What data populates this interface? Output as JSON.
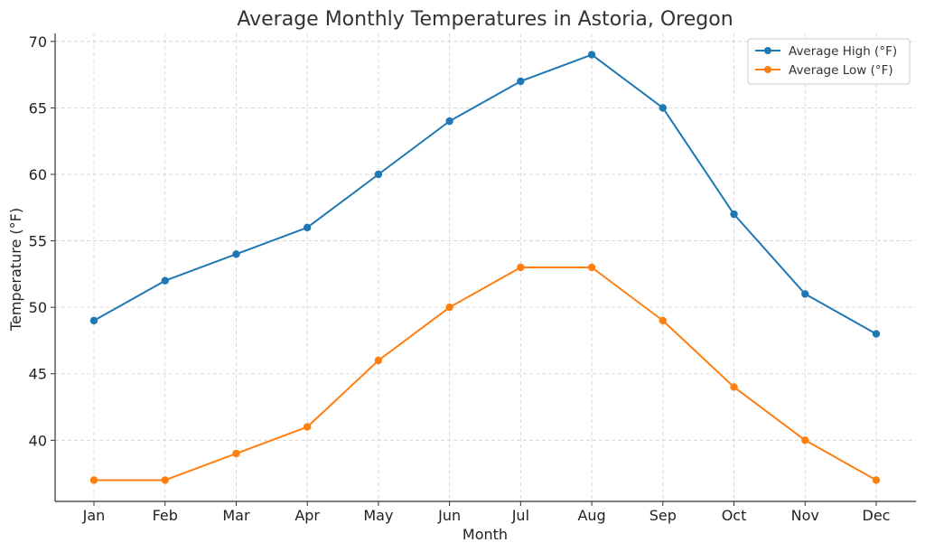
{
  "chart_data": {
    "type": "line",
    "title": "Average Monthly Temperatures in Astoria, Oregon",
    "xlabel": "Month",
    "ylabel": "Temperature (°F)",
    "categories": [
      "Jan",
      "Feb",
      "Mar",
      "Apr",
      "May",
      "Jun",
      "Jul",
      "Aug",
      "Sep",
      "Oct",
      "Nov",
      "Dec"
    ],
    "ylim": [
      35.4,
      70.6
    ],
    "yticks": [
      40,
      45,
      50,
      55,
      60,
      65,
      70
    ],
    "grid": true,
    "legend_position": "top-right",
    "series": [
      {
        "name": "Average High (°F)",
        "color": "#1f77b4",
        "marker": "circle",
        "values": [
          49,
          52,
          54,
          56,
          60,
          64,
          67,
          69,
          65,
          57,
          51,
          48
        ]
      },
      {
        "name": "Average Low (°F)",
        "color": "#ff7f0e",
        "marker": "circle",
        "values": [
          37,
          37,
          39,
          41,
          46,
          50,
          53,
          53,
          49,
          44,
          40,
          37
        ]
      }
    ]
  }
}
